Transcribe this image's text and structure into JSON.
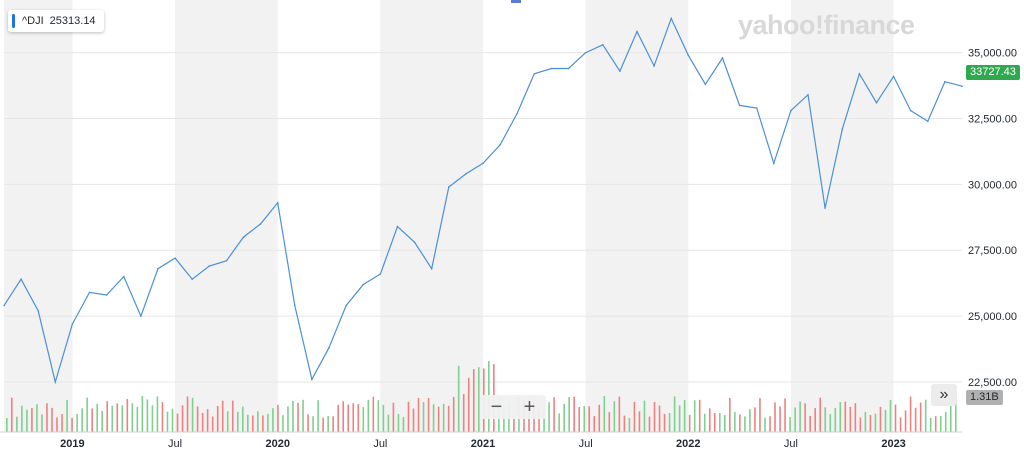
{
  "legend": {
    "symbol": "^DJI",
    "value": "25313.14"
  },
  "watermark": "yahoo!finance",
  "current_price_tag": "33727.43",
  "volume_tag": "1.31B",
  "zoom": {
    "minus": "−",
    "plus": "+"
  },
  "jump_label": "»",
  "colors": {
    "line": "#4a90d9",
    "band": "#f2f2f2",
    "vol_up": "#7fcf8f",
    "vol_down": "#f08080",
    "price_tag": "#2fa84f"
  },
  "chart_data": {
    "type": "line",
    "title": "",
    "series": [
      {
        "name": "^DJI",
        "x": [
          "2018-09",
          "2018-10",
          "2018-11",
          "2018-12",
          "2019-01",
          "2019-02",
          "2019-03",
          "2019-04",
          "2019-05",
          "2019-06",
          "2019-07",
          "2019-08",
          "2019-09",
          "2019-10",
          "2019-11",
          "2019-12",
          "2020-01",
          "2020-02",
          "2020-03",
          "2020-04",
          "2020-05",
          "2020-06",
          "2020-07",
          "2020-08",
          "2020-09",
          "2020-10",
          "2020-11",
          "2020-12",
          "2021-01",
          "2021-02",
          "2021-03",
          "2021-04",
          "2021-05",
          "2021-06",
          "2021-07",
          "2021-08",
          "2021-09",
          "2021-10",
          "2021-11",
          "2021-12",
          "2022-01",
          "2022-02",
          "2022-03",
          "2022-04",
          "2022-05",
          "2022-06",
          "2022-07",
          "2022-08",
          "2022-09",
          "2022-10",
          "2022-11",
          "2022-12",
          "2023-01",
          "2023-02",
          "2023-03",
          "2023-04",
          "2023-05"
        ],
        "values": [
          25400,
          26400,
          25200,
          22500,
          24700,
          25900,
          25800,
          26500,
          25000,
          26800,
          27200,
          26400,
          26900,
          27100,
          28000,
          28500,
          29300,
          25400,
          22600,
          23800,
          25400,
          26200,
          26600,
          28400,
          27800,
          26800,
          29900,
          30400,
          30800,
          31500,
          32700,
          34200,
          34400,
          34400,
          35000,
          35300,
          34300,
          35800,
          34500,
          36300,
          34900,
          33800,
          34800,
          33000,
          32900,
          30800,
          32800,
          33400,
          29100,
          32100,
          34200,
          33100,
          34100,
          32800,
          32400,
          33900,
          33727.43
        ]
      }
    ],
    "y_ticks": [
      22500,
      25000,
      27500,
      30000,
      32500,
      35000
    ],
    "y_tick_labels": [
      "22,500.00",
      "25,000.00",
      "27,500.00",
      "30,000.00",
      "32,500.00",
      "35,000.00"
    ],
    "x_tick_labels": [
      "2019",
      "Jul",
      "2020",
      "Jul",
      "2021",
      "Jul",
      "2022",
      "Jul",
      "2023"
    ],
    "ylim": [
      20600,
      37000
    ],
    "grid": true,
    "volume_bars": true
  }
}
